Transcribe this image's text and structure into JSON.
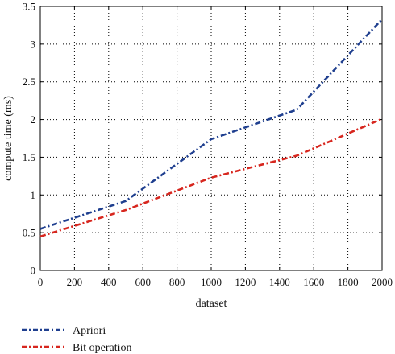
{
  "chart_data": {
    "type": "line",
    "xlabel": "dataset",
    "ylabel": "compute time (ms)",
    "xlim": [
      0,
      2000
    ],
    "ylim": [
      0,
      3.5
    ],
    "xticks": [
      0,
      200,
      400,
      600,
      800,
      1000,
      1200,
      1400,
      1600,
      1800,
      2000
    ],
    "yticks": [
      0,
      0.5,
      1,
      1.5,
      2,
      2.5,
      3,
      3.5
    ],
    "xtick_labels": [
      "0",
      "200",
      "400",
      "600",
      "800",
      "1000",
      "1200",
      "1400",
      "1600",
      "1800",
      "2000"
    ],
    "ytick_labels": [
      "0",
      "0.5",
      "1",
      "1.5",
      "2",
      "2.5",
      "3",
      "3.5"
    ],
    "grid": true,
    "grid_style": "dotted",
    "legend_position": "below plot, left",
    "series": [
      {
        "name": "Apriori",
        "color": "#1f3f8f",
        "style": "dash-dot",
        "x": [
          0,
          500,
          1000,
          1500,
          2000
        ],
        "y": [
          0.55,
          0.92,
          1.74,
          2.13,
          3.33
        ]
      },
      {
        "name": "Bit operation",
        "color": "#d7261e",
        "style": "dash-dot",
        "x": [
          0,
          500,
          1000,
          1500,
          2000
        ],
        "y": [
          0.45,
          0.8,
          1.23,
          1.52,
          2.01
        ]
      }
    ]
  }
}
